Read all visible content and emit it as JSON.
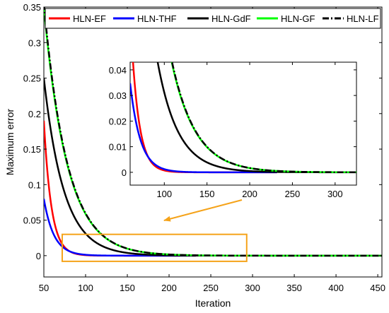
{
  "chart_data": {
    "type": "line",
    "xlabel": "Iteration",
    "ylabel": "Maximum error",
    "xlim": [
      50,
      455
    ],
    "ylim": [
      -0.03,
      0.35
    ],
    "xticks": [
      "50",
      "100",
      "150",
      "200",
      "250",
      "300",
      "350",
      "400",
      "450"
    ],
    "yticks": [
      "0",
      "0.05",
      "0.1",
      "0.15",
      "0.2",
      "0.25",
      "0.3",
      "0.35"
    ],
    "legend_position": "top",
    "series": [
      {
        "name": "HLN-EF",
        "color": "#ff0000",
        "style": "solid",
        "start": 50,
        "end": 232,
        "a": 0.19,
        "tau": 9
      },
      {
        "name": "HLN-THF",
        "color": "#0000ff",
        "style": "solid",
        "start": 50,
        "end": 232,
        "a": 0.08,
        "tau": 12
      },
      {
        "name": "HLN-GdF",
        "color": "#000000",
        "style": "solid",
        "start": 50,
        "end": 455,
        "a": 0.25,
        "tau": 24
      },
      {
        "name": "HLN-GF",
        "color": "#00ff00",
        "style": "solid",
        "start": 50,
        "end": 455,
        "a": 0.35,
        "tau": 28
      },
      {
        "name": "HLN-LF",
        "color": "#000000",
        "style": "dashdot",
        "start": 50,
        "end": 455,
        "a": 0.355,
        "tau": 28
      }
    ],
    "zoom_box": {
      "x": [
        72,
        293
      ],
      "y": [
        -0.008,
        0.03
      ],
      "color": "#ffa500"
    },
    "inset": {
      "xlim": [
        60,
        325
      ],
      "ylim": [
        -0.005,
        0.043
      ],
      "xticks": [
        "100",
        "150",
        "200",
        "250",
        "300"
      ],
      "yticks": [
        "0",
        "0.01",
        "0.02",
        "0.03",
        "0.04"
      ]
    }
  }
}
